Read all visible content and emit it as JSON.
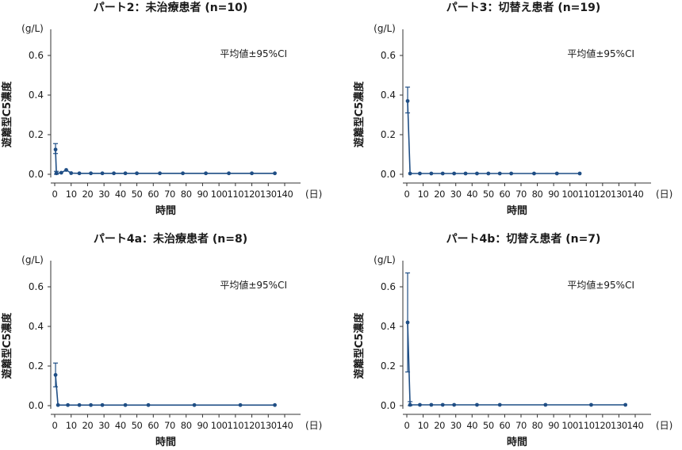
{
  "figure": {
    "series_color": "#1f4e85",
    "axis_color": "#333333"
  },
  "chart_data": [
    {
      "type": "line",
      "title": "パート2：未治療患者 (n=10)",
      "unit_label": "(g/L)",
      "ylabel": "遊離型C5濃度",
      "xlabel": "時間",
      "x_unit": "(日)",
      "annotation": "平均値±95%CI",
      "xlim": [
        0,
        140
      ],
      "ylim": [
        0,
        0.7
      ],
      "x_ticks": [
        "0",
        "10",
        "20",
        "30",
        "40",
        "50",
        "60",
        "70",
        "80",
        "90",
        "100",
        "110",
        "120",
        "130",
        "140"
      ],
      "y_ticks": [
        "0.0",
        "0.2",
        "0.4",
        "0.6"
      ],
      "points": [
        {
          "x": 0.5,
          "y": 0.125,
          "lo": 0.105,
          "hi": 0.155
        },
        {
          "x": 1,
          "y": 0.005,
          "lo": 0.0,
          "hi": 0.015
        },
        {
          "x": 4,
          "y": 0.008
        },
        {
          "x": 7,
          "y": 0.022
        },
        {
          "x": 10,
          "y": 0.006
        },
        {
          "x": 15,
          "y": 0.005
        },
        {
          "x": 22,
          "y": 0.005
        },
        {
          "x": 29,
          "y": 0.005
        },
        {
          "x": 36,
          "y": 0.005
        },
        {
          "x": 43,
          "y": 0.005
        },
        {
          "x": 50,
          "y": 0.005
        },
        {
          "x": 64,
          "y": 0.005
        },
        {
          "x": 78,
          "y": 0.005
        },
        {
          "x": 92,
          "y": 0.005
        },
        {
          "x": 106,
          "y": 0.005
        },
        {
          "x": 120,
          "y": 0.005
        },
        {
          "x": 134,
          "y": 0.005
        }
      ]
    },
    {
      "type": "line",
      "title": "パート3：切替え患者 (n=19)",
      "unit_label": "(g/L)",
      "ylabel": "遊離型C5濃度",
      "xlabel": "時間",
      "x_unit": "(日)",
      "annotation": "平均値±95%CI",
      "xlim": [
        0,
        140
      ],
      "ylim": [
        0,
        0.7
      ],
      "x_ticks": [
        "0",
        "10",
        "20",
        "30",
        "40",
        "50",
        "60",
        "70",
        "80",
        "90",
        "100",
        "110",
        "120",
        "130",
        "140"
      ],
      "y_ticks": [
        "0.0",
        "0.2",
        "0.4",
        "0.6"
      ],
      "points": [
        {
          "x": 0.5,
          "y": 0.37,
          "lo": 0.31,
          "hi": 0.44
        },
        {
          "x": 2,
          "y": 0.004
        },
        {
          "x": 8,
          "y": 0.004
        },
        {
          "x": 15,
          "y": 0.004
        },
        {
          "x": 22,
          "y": 0.004
        },
        {
          "x": 29,
          "y": 0.004
        },
        {
          "x": 36,
          "y": 0.004
        },
        {
          "x": 43,
          "y": 0.004
        },
        {
          "x": 50,
          "y": 0.004
        },
        {
          "x": 57,
          "y": 0.004
        },
        {
          "x": 64,
          "y": 0.004
        },
        {
          "x": 78,
          "y": 0.004
        },
        {
          "x": 92,
          "y": 0.004
        },
        {
          "x": 106,
          "y": 0.004
        }
      ]
    },
    {
      "type": "line",
      "title": "パート4a：未治療患者 (n=8)",
      "unit_label": "(g/L)",
      "ylabel": "遊離型C5濃度",
      "xlabel": "時間",
      "x_unit": "(日)",
      "annotation": "平均値±95%CI",
      "xlim": [
        0,
        140
      ],
      "ylim": [
        0,
        0.7
      ],
      "x_ticks": [
        "0",
        "10",
        "20",
        "30",
        "40",
        "50",
        "60",
        "70",
        "80",
        "90",
        "100",
        "110",
        "120",
        "130",
        "140"
      ],
      "y_ticks": [
        "0.0",
        "0.2",
        "0.4",
        "0.6"
      ],
      "points": [
        {
          "x": 0.5,
          "y": 0.155,
          "lo": 0.095,
          "hi": 0.215
        },
        {
          "x": 2,
          "y": 0.003
        },
        {
          "x": 8,
          "y": 0.003
        },
        {
          "x": 15,
          "y": 0.003
        },
        {
          "x": 22,
          "y": 0.003
        },
        {
          "x": 29,
          "y": 0.003
        },
        {
          "x": 43,
          "y": 0.003
        },
        {
          "x": 57,
          "y": 0.003
        },
        {
          "x": 85,
          "y": 0.003
        },
        {
          "x": 113,
          "y": 0.003
        },
        {
          "x": 134,
          "y": 0.003
        }
      ]
    },
    {
      "type": "line",
      "title": "パート4b：切替え患者 (n=7)",
      "unit_label": "(g/L)",
      "ylabel": "遊離型C5濃度",
      "xlabel": "時間",
      "x_unit": "(日)",
      "annotation": "平均値±95%CI",
      "xlim": [
        0,
        140
      ],
      "ylim": [
        0,
        0.7
      ],
      "x_ticks": [
        "0",
        "10",
        "20",
        "30",
        "40",
        "50",
        "60",
        "70",
        "80",
        "90",
        "100",
        "110",
        "120",
        "130",
        "140"
      ],
      "y_ticks": [
        "0.0",
        "0.2",
        "0.4",
        "0.6"
      ],
      "points": [
        {
          "x": 0.5,
          "y": 0.42,
          "lo": 0.17,
          "hi": 0.67
        },
        {
          "x": 2,
          "y": 0.004,
          "lo": 0.0,
          "hi": 0.02
        },
        {
          "x": 8,
          "y": 0.004
        },
        {
          "x": 15,
          "y": 0.004
        },
        {
          "x": 22,
          "y": 0.004
        },
        {
          "x": 29,
          "y": 0.004
        },
        {
          "x": 43,
          "y": 0.004
        },
        {
          "x": 57,
          "y": 0.004
        },
        {
          "x": 85,
          "y": 0.004
        },
        {
          "x": 113,
          "y": 0.004
        },
        {
          "x": 134,
          "y": 0.004
        }
      ]
    }
  ]
}
